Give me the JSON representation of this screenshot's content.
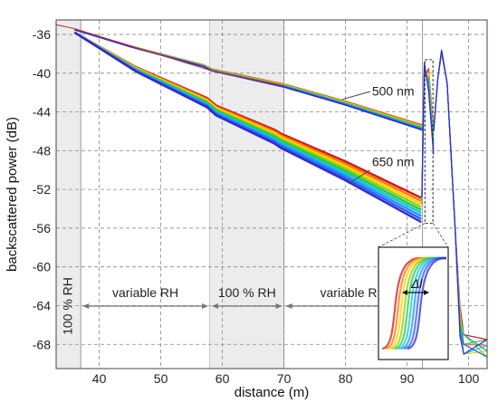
{
  "chart_data": {
    "type": "line",
    "xlabel": "distance (m)",
    "ylabel": "backscattered power (dB)",
    "xlim": [
      33,
      103
    ],
    "ylim": [
      -70.5,
      -34.5
    ],
    "x_ticks": [
      40,
      50,
      60,
      70,
      80,
      90,
      100
    ],
    "y_ticks": [
      -36,
      -40,
      -44,
      -48,
      -52,
      -56,
      -60,
      -64,
      -68
    ],
    "grid": true,
    "humidity_zones": [
      {
        "label": "100 % RH",
        "x_start": 33,
        "x_end": 37,
        "shaded": true
      },
      {
        "label": "variable RH",
        "x_start": 37,
        "x_end": 58,
        "shaded": false
      },
      {
        "label": "100 % RH",
        "x_start": 58,
        "x_end": 70,
        "shaded": true
      },
      {
        "label": "variable RH",
        "x_start": 70,
        "x_end": 92.5,
        "shaded": false
      }
    ],
    "series": [
      {
        "name": "500 nm",
        "points": [
          [
            36,
            -35.5
          ],
          [
            45,
            -37.2
          ],
          [
            57,
            -39.2
          ],
          [
            58.2,
            -39.6
          ],
          [
            70,
            -41.2
          ],
          [
            80,
            -43.0
          ],
          [
            92.5,
            -45.5
          ]
        ],
        "spread_db": 0.5
      },
      {
        "name": "650 nm",
        "points": [
          [
            36,
            -35.8
          ],
          [
            46,
            -39.5
          ],
          [
            57.5,
            -42.8
          ],
          [
            59,
            -43.6
          ],
          [
            68.5,
            -46.2
          ],
          [
            69.5,
            -46.6
          ],
          [
            80,
            -49.6
          ],
          [
            92.3,
            -53.5
          ]
        ],
        "spread_db": 2.5
      },
      {
        "name": "",
        "points": [
          [
            33,
            -35.0
          ],
          [
            36,
            -35.4
          ],
          [
            58,
            -39.7
          ],
          [
            70,
            -41.3
          ]
        ],
        "spread_db": 0
      }
    ],
    "reflection_peaks": [
      {
        "x": 93.5,
        "y": -39.5
      },
      {
        "x": 95.6,
        "y": -38.0
      }
    ],
    "colors": [
      "#d11a1a",
      "#ff7a00",
      "#ffd200",
      "#8ed400",
      "#22c55e",
      "#17c8c8",
      "#1f93ff",
      "#2d5bff",
      "#3428c8"
    ],
    "annotations": {
      "series_labels": [
        "500 nm",
        "650 nm"
      ],
      "inset_label": "Δl"
    }
  }
}
